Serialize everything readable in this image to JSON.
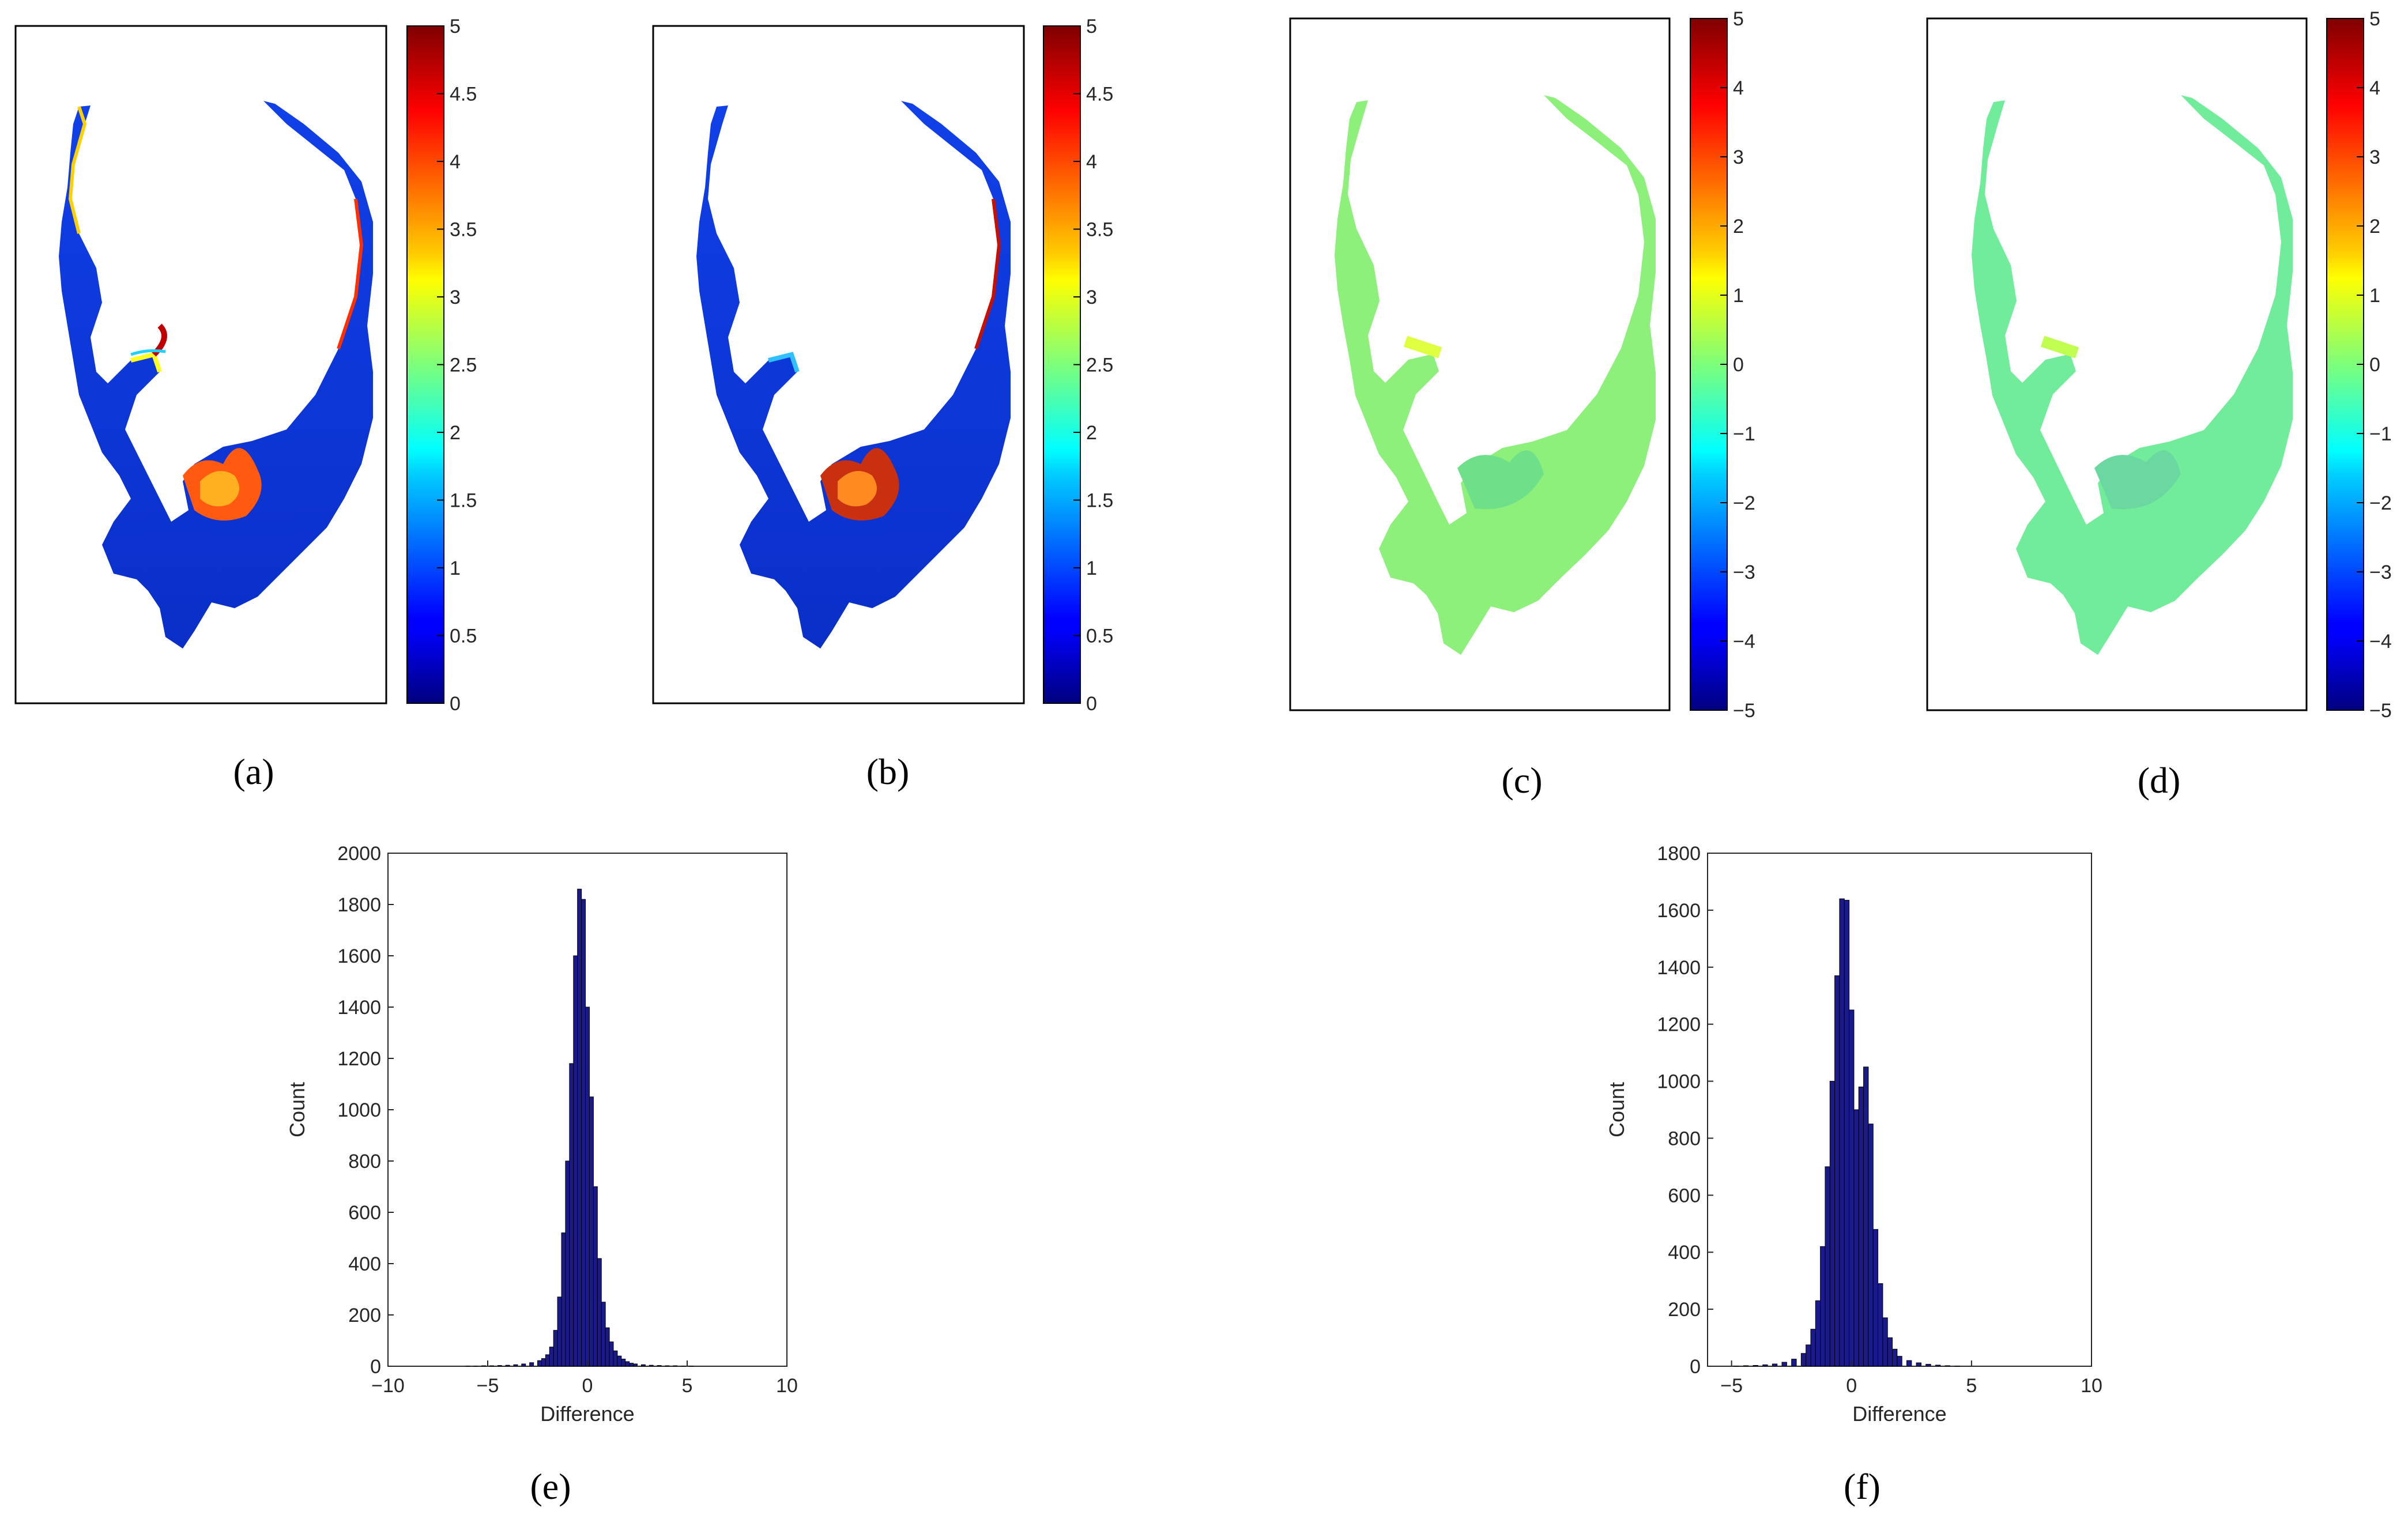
{
  "figure": {
    "panel_labels": [
      "(a)",
      "(b)",
      "(c)",
      "(d)",
      "(e)",
      "(f)"
    ]
  },
  "chart_data": [
    {
      "type": "heatmap",
      "panel": "(a)",
      "colormap": "jet",
      "colorbar_range": [
        0,
        5
      ],
      "colorbar_ticks": [
        "0",
        "0.5",
        "1",
        "1.5",
        "2",
        "2.5",
        "3",
        "3.5",
        "4",
        "4.5",
        "5"
      ]
    },
    {
      "type": "heatmap",
      "panel": "(b)",
      "colormap": "jet",
      "colorbar_range": [
        0,
        5
      ],
      "colorbar_ticks": [
        "0",
        "0.5",
        "1",
        "1.5",
        "2",
        "2.5",
        "3",
        "3.5",
        "4",
        "4.5",
        "5"
      ]
    },
    {
      "type": "heatmap",
      "panel": "(c)",
      "colormap": "jet",
      "colorbar_range": [
        -5,
        5
      ],
      "colorbar_ticks": [
        "−5",
        "−4",
        "−3",
        "−2",
        "−1",
        "0",
        "1",
        "2",
        "3",
        "4",
        "5"
      ]
    },
    {
      "type": "heatmap",
      "panel": "(d)",
      "colormap": "jet",
      "colorbar_range": [
        -5,
        5
      ],
      "colorbar_ticks": [
        "−5",
        "−4",
        "−3",
        "−2",
        "−1",
        "0",
        "1",
        "2",
        "3",
        "4",
        "5"
      ]
    },
    {
      "type": "bar",
      "panel": "(e)",
      "xlabel": "Difference",
      "ylabel": "Count",
      "xlim": [
        -10,
        10
      ],
      "ylim": [
        0,
        2000
      ],
      "xticks": [
        "−10",
        "−5",
        "0",
        "5",
        "10"
      ],
      "yticks": [
        "0",
        "200",
        "400",
        "600",
        "800",
        "1000",
        "1200",
        "1400",
        "1600",
        "1800",
        "2000"
      ],
      "bar_color": "#1a1a8c",
      "bins": {
        "x": [
          -6.0,
          -5.6,
          -5.2,
          -4.8,
          -4.4,
          -4.0,
          -3.6,
          -3.2,
          -2.8,
          -2.4,
          -2.2,
          -2.0,
          -1.8,
          -1.6,
          -1.4,
          -1.2,
          -1.0,
          -0.8,
          -0.6,
          -0.4,
          -0.2,
          0.0,
          0.2,
          0.4,
          0.6,
          0.8,
          1.0,
          1.2,
          1.4,
          1.6,
          1.8,
          2.0,
          2.2,
          2.4,
          2.8,
          3.2,
          3.6,
          4.0,
          4.4,
          4.8,
          5.2
        ],
        "values": [
          1,
          1,
          2,
          2,
          3,
          4,
          6,
          9,
          14,
          22,
          30,
          45,
          75,
          140,
          270,
          520,
          800,
          1180,
          1600,
          1860,
          1820,
          1400,
          1050,
          700,
          420,
          250,
          150,
          95,
          60,
          40,
          28,
          18,
          12,
          9,
          6,
          4,
          3,
          2,
          2,
          1,
          1
        ]
      }
    },
    {
      "type": "bar",
      "panel": "(f)",
      "xlabel": "Difference",
      "ylabel": "Count",
      "xlim": [
        -6,
        10
      ],
      "ylim": [
        0,
        1800
      ],
      "xticks": [
        "−5",
        "0",
        "5",
        "10"
      ],
      "yticks": [
        "0",
        "200",
        "400",
        "600",
        "800",
        "1000",
        "1200",
        "1400",
        "1600",
        "1800"
      ],
      "bar_color": "#1a1a8c",
      "bins": {
        "x": [
          -4.8,
          -4.4,
          -4.0,
          -3.6,
          -3.2,
          -2.8,
          -2.4,
          -2.0,
          -1.8,
          -1.6,
          -1.4,
          -1.2,
          -1.0,
          -0.8,
          -0.6,
          -0.4,
          -0.2,
          0.0,
          0.2,
          0.4,
          0.6,
          0.8,
          1.0,
          1.2,
          1.4,
          1.6,
          1.8,
          2.0,
          2.4,
          2.8,
          3.2,
          3.6,
          4.0,
          4.4
        ],
        "values": [
          1,
          2,
          3,
          5,
          8,
          14,
          25,
          45,
          75,
          130,
          230,
          420,
          700,
          1000,
          1370,
          1640,
          1635,
          1250,
          900,
          980,
          1050,
          850,
          480,
          290,
          170,
          100,
          60,
          35,
          20,
          12,
          7,
          4,
          2,
          1
        ]
      }
    }
  ]
}
